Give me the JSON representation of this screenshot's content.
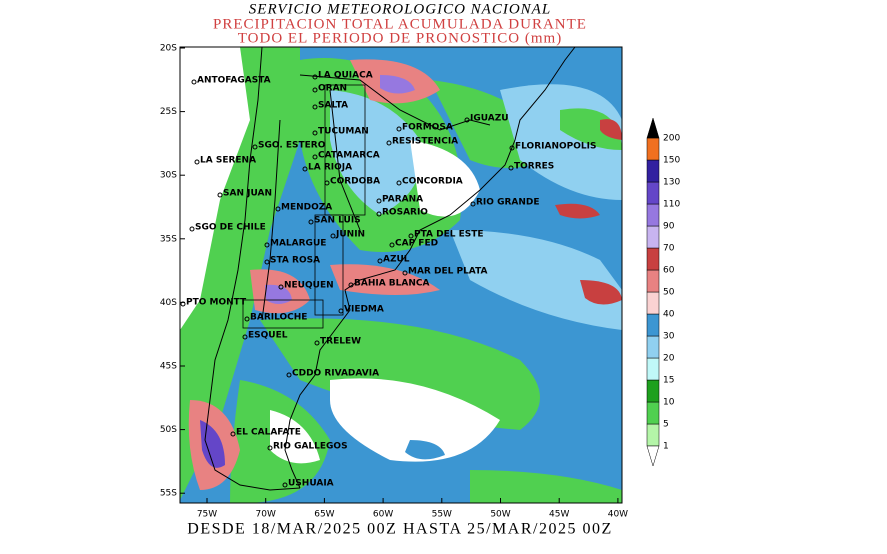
{
  "header": {
    "agency": "SERVICIO METEOROLOGICO NACIONAL",
    "title_line1": "PRECIPITACION TOTAL ACUMULADA DURANTE",
    "title_line2": "TODO EL PERIODO DE PRONOSTICO (mm)"
  },
  "map": {
    "lat_labels": [
      "20S",
      "25S",
      "30S",
      "35S",
      "40S",
      "45S",
      "50S",
      "55S"
    ],
    "lon_labels": [
      "75W",
      "70W",
      "65W",
      "60W",
      "55W",
      "50W",
      "45W",
      "40W"
    ],
    "cities": [
      "ANTOFAGASTA",
      "LA QUIACA",
      "ORAN",
      "SALTA",
      "IGUAZU",
      "TUCUMAN",
      "FORMOSA",
      "SGO. ESTERO",
      "RESISTENCIA",
      "FLORIANOPOLIS",
      "CATAMARCA",
      "LA SERENA",
      "LA RIOJA",
      "TORRES",
      "CORDOBA",
      "CONCORDIA",
      "SAN JUAN",
      "PARANA",
      "RIO GRANDE",
      "MENDOZA",
      "ROSARIO",
      "SAN LUIS",
      "SGO DE CHILE",
      "JUNIN",
      "PTA DEL ESTE",
      "MALARGUE",
      "CAP FED",
      "AZUL",
      "STA ROSA",
      "MAR DEL PLATA",
      "NEUQUEN",
      "BAHIA BLANCA",
      "PTO MONTT",
      "VIEDMA",
      "BARILOCHE",
      "ESQUEL",
      "TRELEW",
      "CDDO RIVADAVIA",
      "EL CALAFATE",
      "RIO GALLEGOS",
      "USHUAIA"
    ],
    "colorbar": {
      "levels": [
        1,
        5,
        10,
        15,
        20,
        30,
        40,
        50,
        60,
        70,
        90,
        110,
        130,
        150,
        200
      ],
      "colors": [
        "#ffffff",
        "#b4f5a8",
        "#50d050",
        "#1ea01e",
        "#c0f8f8",
        "#90d0f0",
        "#3c96d2",
        "#fad2d2",
        "#e88282",
        "#c84040",
        "#c8b4f0",
        "#9678e0",
        "#6446c8",
        "#3220a0",
        "#f07020",
        "#000000"
      ]
    }
  },
  "footer": "DESDE 18/MAR/2025 00Z HASTA 25/MAR/2025 00Z"
}
